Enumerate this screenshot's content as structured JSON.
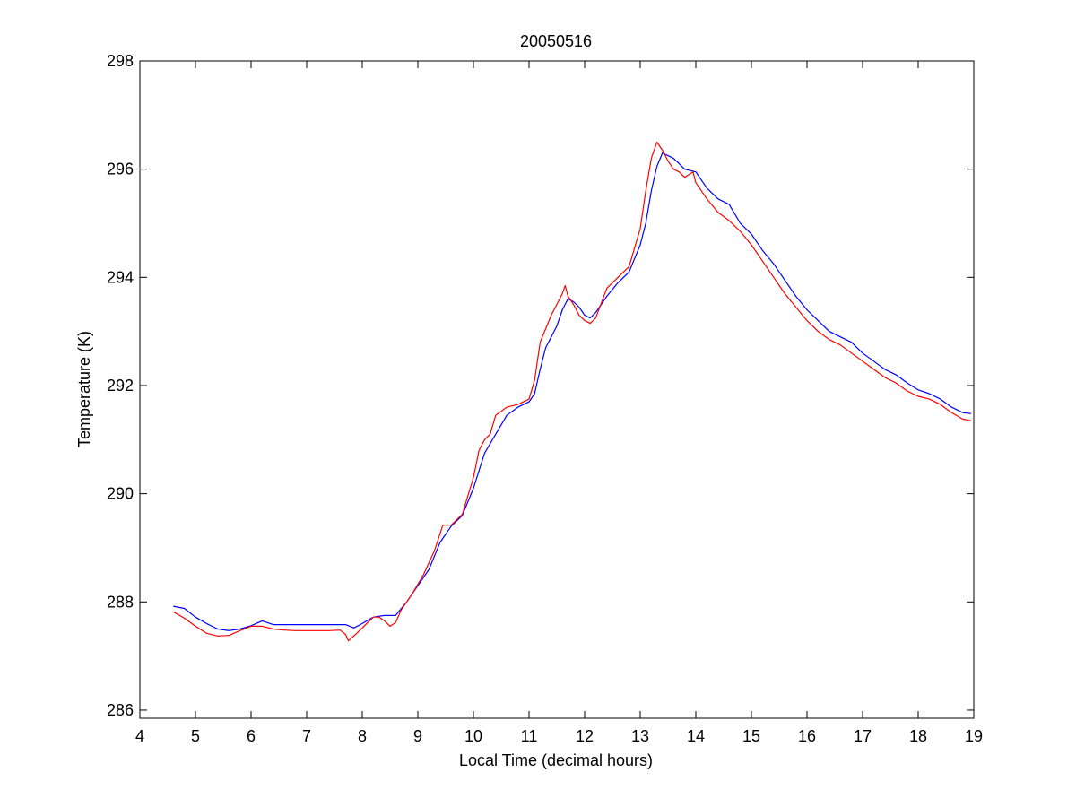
{
  "chart_data": {
    "type": "line",
    "title": "20050516",
    "xlabel": "Local Time (decimal hours)",
    "ylabel": "Temperature (K)",
    "xlim": [
      4,
      19
    ],
    "ylim": [
      285.85,
      298
    ],
    "xticks": [
      "4",
      "5",
      "6",
      "7",
      "8",
      "9",
      "10",
      "11",
      "12",
      "13",
      "14",
      "15",
      "16",
      "17",
      "18",
      "19"
    ],
    "yticks": [
      "286",
      "288",
      "290",
      "292",
      "294",
      "296",
      "298"
    ],
    "grid": false,
    "legend": "none",
    "series": [
      {
        "color": "#0000ff",
        "points": [
          [
            4.6,
            287.92
          ],
          [
            4.8,
            287.88
          ],
          [
            5.0,
            287.72
          ],
          [
            5.2,
            287.6
          ],
          [
            5.4,
            287.5
          ],
          [
            5.6,
            287.47
          ],
          [
            5.8,
            287.5
          ],
          [
            6.0,
            287.56
          ],
          [
            6.2,
            287.65
          ],
          [
            6.4,
            287.58
          ],
          [
            6.6,
            287.58
          ],
          [
            6.8,
            287.58
          ],
          [
            7.0,
            287.58
          ],
          [
            7.2,
            287.58
          ],
          [
            7.4,
            287.58
          ],
          [
            7.7,
            287.58
          ],
          [
            7.85,
            287.52
          ],
          [
            8.0,
            287.6
          ],
          [
            8.2,
            287.72
          ],
          [
            8.4,
            287.75
          ],
          [
            8.6,
            287.75
          ],
          [
            8.8,
            288.0
          ],
          [
            9.0,
            288.3
          ],
          [
            9.2,
            288.6
          ],
          [
            9.4,
            289.1
          ],
          [
            9.6,
            289.4
          ],
          [
            9.8,
            289.6
          ],
          [
            10.0,
            290.1
          ],
          [
            10.2,
            290.75
          ],
          [
            10.4,
            291.1
          ],
          [
            10.6,
            291.45
          ],
          [
            10.8,
            291.6
          ],
          [
            11.0,
            291.7
          ],
          [
            11.1,
            291.85
          ],
          [
            11.2,
            292.3
          ],
          [
            11.3,
            292.7
          ],
          [
            11.4,
            292.9
          ],
          [
            11.5,
            293.1
          ],
          [
            11.6,
            293.4
          ],
          [
            11.7,
            293.6
          ],
          [
            11.8,
            293.55
          ],
          [
            11.9,
            293.45
          ],
          [
            12.0,
            293.3
          ],
          [
            12.1,
            293.25
          ],
          [
            12.2,
            293.35
          ],
          [
            12.4,
            293.65
          ],
          [
            12.6,
            293.9
          ],
          [
            12.8,
            294.1
          ],
          [
            13.0,
            294.6
          ],
          [
            13.1,
            295.0
          ],
          [
            13.2,
            295.6
          ],
          [
            13.3,
            296.05
          ],
          [
            13.4,
            296.3
          ],
          [
            13.5,
            296.25
          ],
          [
            13.6,
            296.2
          ],
          [
            13.7,
            296.1
          ],
          [
            13.8,
            296.0
          ],
          [
            14.0,
            295.95
          ],
          [
            14.2,
            295.65
          ],
          [
            14.4,
            295.45
          ],
          [
            14.6,
            295.35
          ],
          [
            14.8,
            295.0
          ],
          [
            15.0,
            294.8
          ],
          [
            15.2,
            294.5
          ],
          [
            15.4,
            294.25
          ],
          [
            15.6,
            293.95
          ],
          [
            15.8,
            293.65
          ],
          [
            16.0,
            293.4
          ],
          [
            16.2,
            293.2
          ],
          [
            16.4,
            293.0
          ],
          [
            16.6,
            292.9
          ],
          [
            16.8,
            292.8
          ],
          [
            17.0,
            292.6
          ],
          [
            17.2,
            292.45
          ],
          [
            17.4,
            292.3
          ],
          [
            17.6,
            292.2
          ],
          [
            17.8,
            292.05
          ],
          [
            18.0,
            291.92
          ],
          [
            18.2,
            291.85
          ],
          [
            18.4,
            291.75
          ],
          [
            18.6,
            291.6
          ],
          [
            18.8,
            291.5
          ],
          [
            18.95,
            291.48
          ]
        ]
      },
      {
        "color": "#ff0000",
        "points": [
          [
            4.6,
            287.82
          ],
          [
            4.8,
            287.7
          ],
          [
            5.0,
            287.55
          ],
          [
            5.2,
            287.42
          ],
          [
            5.4,
            287.37
          ],
          [
            5.6,
            287.38
          ],
          [
            5.8,
            287.47
          ],
          [
            6.0,
            287.55
          ],
          [
            6.2,
            287.55
          ],
          [
            6.4,
            287.5
          ],
          [
            6.6,
            287.48
          ],
          [
            6.8,
            287.47
          ],
          [
            7.0,
            287.47
          ],
          [
            7.2,
            287.47
          ],
          [
            7.4,
            287.47
          ],
          [
            7.6,
            287.48
          ],
          [
            7.7,
            287.4
          ],
          [
            7.75,
            287.28
          ],
          [
            7.9,
            287.42
          ],
          [
            8.0,
            287.52
          ],
          [
            8.1,
            287.62
          ],
          [
            8.2,
            287.72
          ],
          [
            8.3,
            287.72
          ],
          [
            8.4,
            287.65
          ],
          [
            8.5,
            287.55
          ],
          [
            8.6,
            287.62
          ],
          [
            8.7,
            287.85
          ],
          [
            8.9,
            288.15
          ],
          [
            9.1,
            288.5
          ],
          [
            9.3,
            288.95
          ],
          [
            9.45,
            289.42
          ],
          [
            9.6,
            289.42
          ],
          [
            9.8,
            289.62
          ],
          [
            10.0,
            290.3
          ],
          [
            10.1,
            290.8
          ],
          [
            10.2,
            291.0
          ],
          [
            10.3,
            291.1
          ],
          [
            10.4,
            291.45
          ],
          [
            10.6,
            291.6
          ],
          [
            10.8,
            291.65
          ],
          [
            11.0,
            291.75
          ],
          [
            11.1,
            292.1
          ],
          [
            11.2,
            292.8
          ],
          [
            11.3,
            293.05
          ],
          [
            11.4,
            293.3
          ],
          [
            11.5,
            293.5
          ],
          [
            11.6,
            293.7
          ],
          [
            11.65,
            293.85
          ],
          [
            11.7,
            293.65
          ],
          [
            11.8,
            293.5
          ],
          [
            11.9,
            293.3
          ],
          [
            12.0,
            293.2
          ],
          [
            12.1,
            293.15
          ],
          [
            12.2,
            293.25
          ],
          [
            12.4,
            293.8
          ],
          [
            12.6,
            294.0
          ],
          [
            12.8,
            294.2
          ],
          [
            12.9,
            294.55
          ],
          [
            13.0,
            294.9
          ],
          [
            13.1,
            295.6
          ],
          [
            13.2,
            296.2
          ],
          [
            13.3,
            296.5
          ],
          [
            13.4,
            296.35
          ],
          [
            13.5,
            296.15
          ],
          [
            13.6,
            296.0
          ],
          [
            13.7,
            295.95
          ],
          [
            13.8,
            295.85
          ],
          [
            13.95,
            295.95
          ],
          [
            14.0,
            295.75
          ],
          [
            14.2,
            295.45
          ],
          [
            14.4,
            295.2
          ],
          [
            14.6,
            295.05
          ],
          [
            14.8,
            294.85
          ],
          [
            15.0,
            294.6
          ],
          [
            15.2,
            294.3
          ],
          [
            15.4,
            294.0
          ],
          [
            15.6,
            293.7
          ],
          [
            15.8,
            293.45
          ],
          [
            16.0,
            293.2
          ],
          [
            16.2,
            293.0
          ],
          [
            16.4,
            292.85
          ],
          [
            16.6,
            292.75
          ],
          [
            16.8,
            292.6
          ],
          [
            17.0,
            292.45
          ],
          [
            17.2,
            292.3
          ],
          [
            17.4,
            292.15
          ],
          [
            17.6,
            292.05
          ],
          [
            17.8,
            291.9
          ],
          [
            18.0,
            291.8
          ],
          [
            18.2,
            291.75
          ],
          [
            18.4,
            291.65
          ],
          [
            18.6,
            291.5
          ],
          [
            18.8,
            291.38
          ],
          [
            18.95,
            291.35
          ]
        ]
      }
    ]
  }
}
